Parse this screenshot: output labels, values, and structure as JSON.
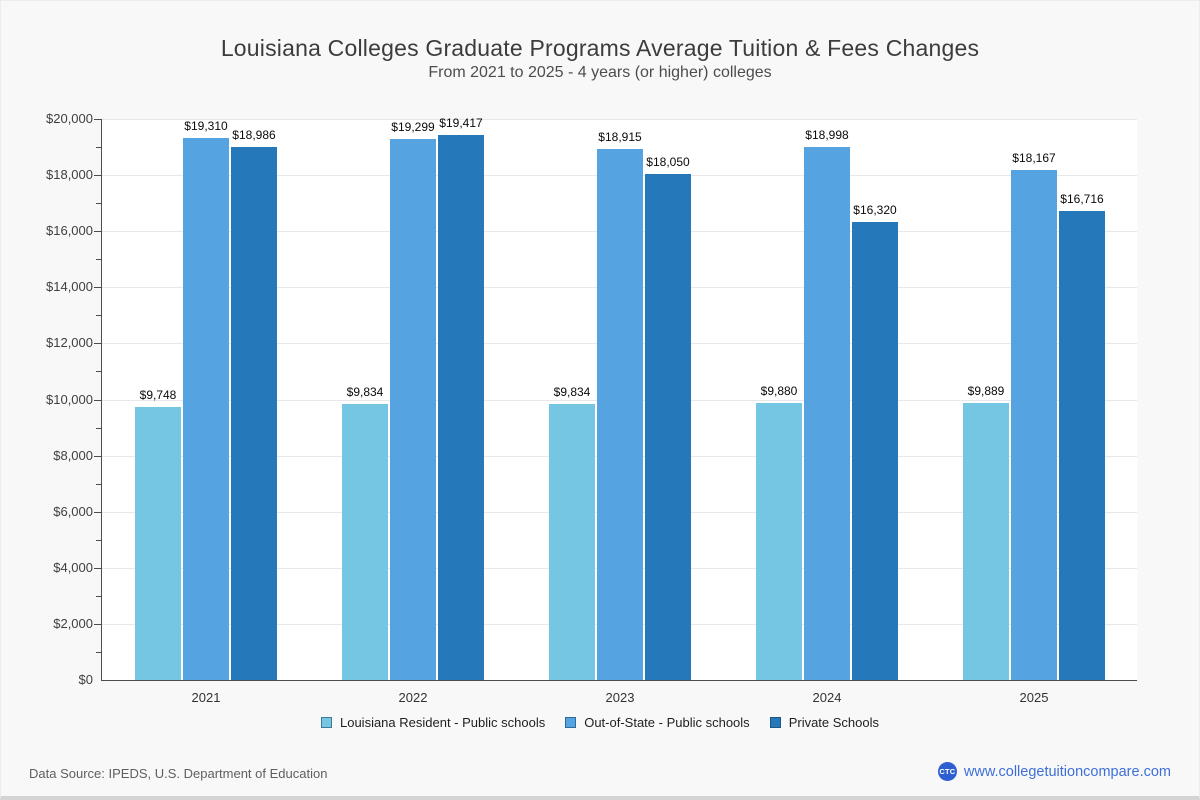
{
  "title": "Louisiana Colleges Graduate Programs Average Tuition & Fees Changes",
  "subtitle": "From 2021 to 2025 - 4 years (or higher) colleges",
  "footer": {
    "source": "Data Source: IPEDS, U.S. Department of Education",
    "site_url": "www.collegetuitioncompare.com",
    "logo_text": "CTC"
  },
  "colors": {
    "page_bg": "#f8f8f8",
    "plot_bg": "#ffffff",
    "gridline": "#e8e8e8",
    "axis": "#4d4d4d",
    "link": "#3e6fd8",
    "logo_bg": "#2d5fd3",
    "series": [
      "#74c6e2",
      "#55a3e0",
      "#2578ba"
    ]
  },
  "chart_data": {
    "type": "bar",
    "title": "Louisiana Colleges Graduate Programs Average Tuition & Fees Changes",
    "subtitle": "From 2021 to 2025 - 4 years (or higher) colleges",
    "categories": [
      "2021",
      "2022",
      "2023",
      "2024",
      "2025"
    ],
    "series": [
      {
        "name": "Louisiana Resident - Public schools",
        "color": "#74c6e2",
        "values": [
          9748,
          9834,
          9834,
          9880,
          9889
        ],
        "labels": [
          "$9,748",
          "$9,834",
          "$9,834",
          "$9,880",
          "$9,889"
        ]
      },
      {
        "name": "Out-of-State - Public schools",
        "color": "#55a3e0",
        "values": [
          19310,
          19299,
          18915,
          18998,
          18167
        ],
        "labels": [
          "$19,310",
          "$19,299",
          "$18,915",
          "$18,998",
          "$18,167"
        ]
      },
      {
        "name": "Private Schools",
        "color": "#2578ba",
        "values": [
          18986,
          19417,
          18050,
          16320,
          16716
        ],
        "labels": [
          "$18,986",
          "$19,417",
          "$18,050",
          "$16,320",
          "$16,716"
        ]
      }
    ],
    "ylim": [
      0,
      20000
    ],
    "ytick_step": 2000,
    "ytick_minor_step": 1000,
    "ytick_labels": [
      "$0",
      "$2,000",
      "$4,000",
      "$6,000",
      "$8,000",
      "$10,000",
      "$12,000",
      "$14,000",
      "$16,000",
      "$18,000",
      "$20,000"
    ],
    "grid": "horizontal-major",
    "legend_position": "bottom"
  }
}
